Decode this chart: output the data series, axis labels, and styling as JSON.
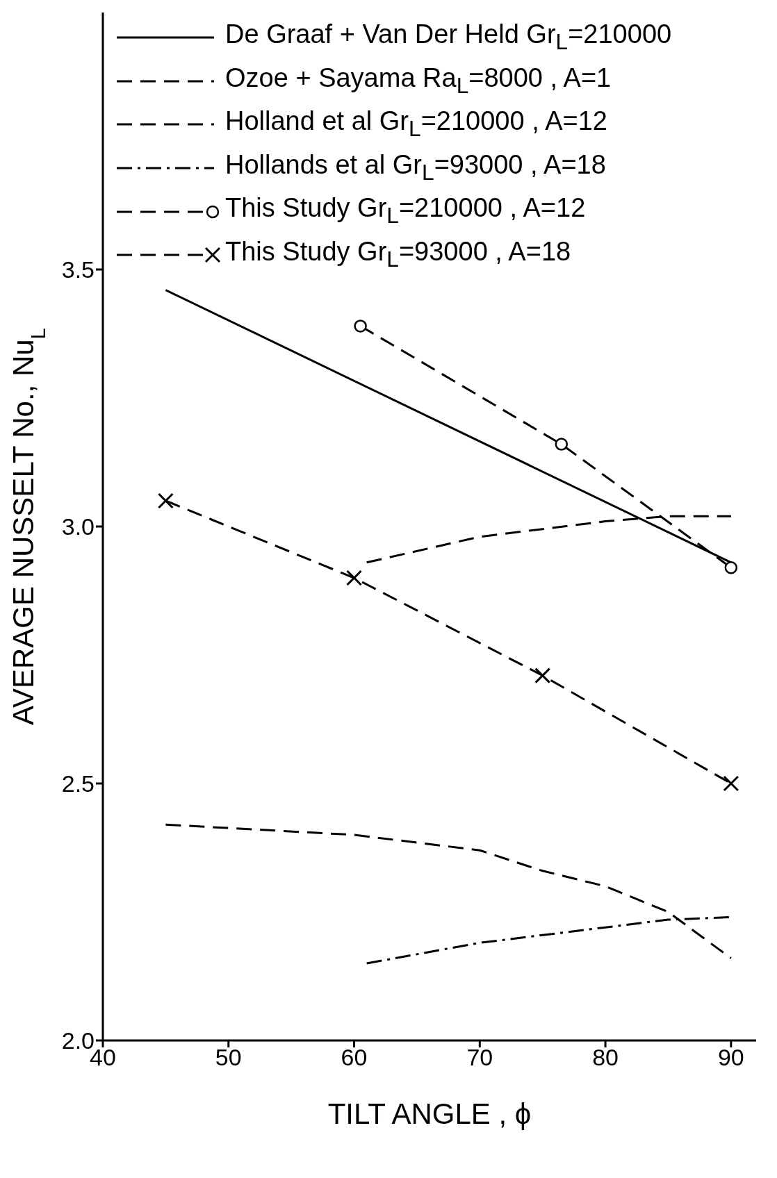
{
  "chart_data": {
    "type": "line",
    "xlabel": "TILT ANGLE , ϕ",
    "ylabel": "AVERAGE NUSSELT No., Nu$_{L}$",
    "xlim": [
      40,
      92
    ],
    "xticks": [
      40,
      50,
      60,
      70,
      80,
      90
    ],
    "ylim": [
      2.0,
      4.0
    ],
    "yticks": [
      {
        "value": 2,
        "label": "2.0"
      },
      2.5,
      {
        "value": 3,
        "label": "3.0"
      },
      3.5
    ],
    "grid": false,
    "legend": "top",
    "series": [
      {
        "name": "De Graaf + Van Der Held Gr$_{L}$=210000",
        "color": "#000000",
        "line_style": "solid",
        "marker": "none",
        "x": [
          45,
          90
        ],
        "values": [
          3.46,
          2.93
        ]
      },
      {
        "name": "Ozoe + Sayama Ra$_{L}$=8000 , A=1",
        "color": "#000000",
        "line_style": "dashed",
        "marker": "none",
        "x": [
          45,
          60,
          70,
          75,
          80,
          85,
          90
        ],
        "values": [
          2.42,
          2.4,
          2.37,
          2.33,
          2.3,
          2.25,
          2.16
        ]
      },
      {
        "name": "Holland et al Gr$_{L}$=210000 , A=12",
        "color": "#000000",
        "line_style": "dashed",
        "marker": "none",
        "x": [
          61,
          70,
          80,
          85,
          90
        ],
        "values": [
          2.93,
          2.98,
          3.01,
          3.02,
          3.02
        ]
      },
      {
        "name": "Hollands et al Gr$_{L}$=93000 , A=18",
        "color": "#000000",
        "line_style": "dotted",
        "marker": "none",
        "x": [
          61,
          70,
          80,
          85,
          90
        ],
        "values": [
          2.15,
          2.19,
          2.22,
          2.235,
          2.24
        ]
      },
      {
        "name": "This Study Gr$_{L}$=210000 , A=12",
        "color": "#000000",
        "line_style": "dashed",
        "marker": "circle",
        "x": [
          60.5,
          76.5,
          90
        ],
        "values": [
          3.39,
          3.16,
          2.92
        ]
      },
      {
        "name": "This Study Gr$_{L}$=93000 , A=18",
        "color": "#000000",
        "line_style": "dashed",
        "marker": "cross",
        "x": [
          45,
          60,
          75,
          90
        ],
        "values": [
          3.05,
          2.9,
          2.71,
          2.5
        ]
      }
    ]
  }
}
